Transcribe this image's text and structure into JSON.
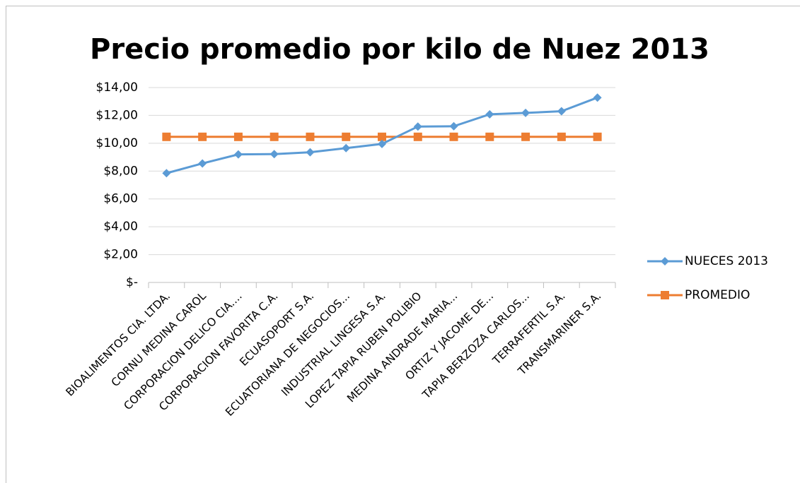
{
  "chart_data": {
    "type": "line",
    "title": "Precio promedio por kilo de Nuez 2013",
    "categories": [
      "BIOALIMENTOS CIA. LTDA.",
      "CORNU MEDINA CAROL",
      "CORPORACION DELICO CIA....",
      "CORPORACION FAVORITA C.A.",
      "ECUASOPORT S.A.",
      "ECUATORIANA DE NEGOCIOS...",
      "INDUSTRIAL LINGESA S.A.",
      "LOPEZ TAPIA RUBEN POLIBIO",
      "MEDINA ANDRADE MARIA...",
      "ORTIZ Y JACOME DE...",
      "TAPIA BERZOZA CARLOS...",
      "TERRAFERTIL S.A.",
      "TRANSMARINER S.A."
    ],
    "series": [
      {
        "name": "NUECES 2013",
        "color": "#5b9bd5",
        "marker": "diamond",
        "values": [
          7.85,
          8.55,
          9.2,
          9.22,
          9.35,
          9.65,
          9.95,
          11.2,
          11.22,
          12.08,
          12.18,
          12.3,
          13.28
        ]
      },
      {
        "name": "PROMEDIO",
        "color": "#ed7d31",
        "marker": "square",
        "values": [
          10.46,
          10.46,
          10.46,
          10.46,
          10.46,
          10.46,
          10.46,
          10.46,
          10.46,
          10.46,
          10.46,
          10.46,
          10.46
        ]
      }
    ],
    "ylim": [
      0,
      14
    ],
    "yticks": [
      {
        "value": 0,
        "label": "$-"
      },
      {
        "value": 2,
        "label": "$2,00"
      },
      {
        "value": 4,
        "label": "$4,00"
      },
      {
        "value": 6,
        "label": "$6,00"
      },
      {
        "value": 8,
        "label": "$8,00"
      },
      {
        "value": 10,
        "label": "$10,00"
      },
      {
        "value": 12,
        "label": "$12,00"
      },
      {
        "value": 14,
        "label": "$14,00"
      }
    ],
    "grid": true,
    "legend": "right"
  }
}
